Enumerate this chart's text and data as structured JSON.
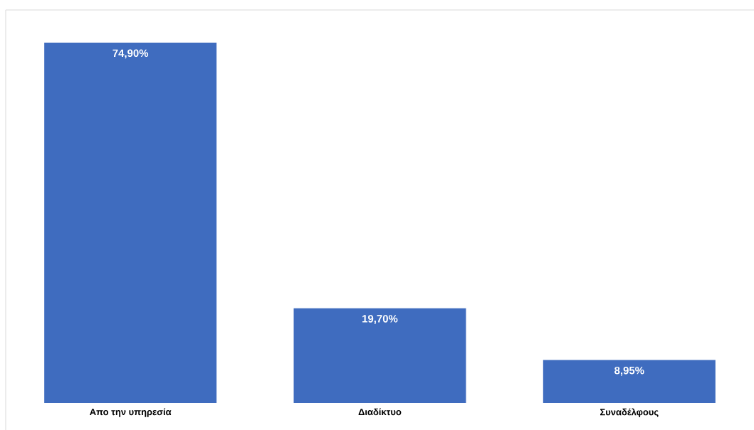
{
  "chart_data": {
    "type": "bar",
    "categories": [
      "Απο την υπηρεσία",
      "Διαδίκτυο",
      "Συναδέλφους"
    ],
    "values": [
      74.9,
      19.7,
      8.95
    ],
    "value_labels": [
      "74,90%",
      "19,70%",
      "8,95%"
    ],
    "color": "#3f6cbf"
  }
}
